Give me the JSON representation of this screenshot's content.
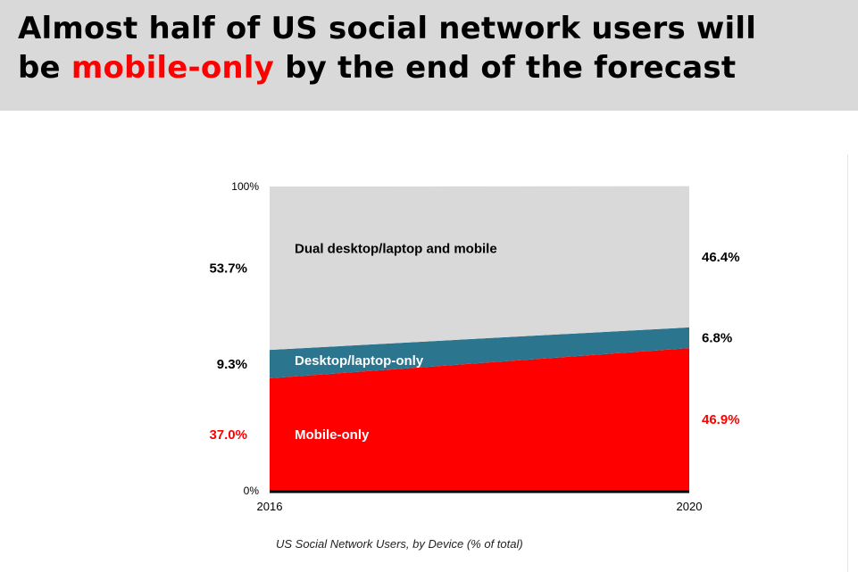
{
  "title": {
    "line1": "Almost half of US social network users will",
    "line2_before": "be ",
    "line2_highlight": "mobile-only",
    "line2_after": " by the end of the forecast"
  },
  "caption": "US Social Network Users, by Device (% of total)",
  "colors": {
    "mobile": "#ff0000",
    "desktop": "#2c758f",
    "dual": "#d9d9d9",
    "highlight": "#ff0000"
  },
  "chart_data": {
    "type": "area",
    "stacked": true,
    "x": [
      "2016",
      "2020"
    ],
    "ylim": [
      0,
      100
    ],
    "yticks": [
      "0%",
      "100%"
    ],
    "series": [
      {
        "name": "Mobile-only",
        "values": [
          37.0,
          46.9
        ],
        "labels": [
          "37.0%",
          "46.9%"
        ],
        "color": "#ff0000",
        "label_color": "#ffffff"
      },
      {
        "name": "Desktop/laptop-only",
        "values": [
          9.3,
          6.8
        ],
        "labels": [
          "9.3%",
          "6.8%"
        ],
        "color": "#2c758f",
        "label_color": "#ffffff"
      },
      {
        "name": "Dual desktop/laptop and mobile",
        "values": [
          53.7,
          46.4
        ],
        "labels": [
          "53.7%",
          "46.4%"
        ],
        "color": "#d9d9d9",
        "label_color": "#000000"
      }
    ],
    "value_label_colors": [
      "#ff0000",
      "#000000",
      "#000000"
    ]
  }
}
